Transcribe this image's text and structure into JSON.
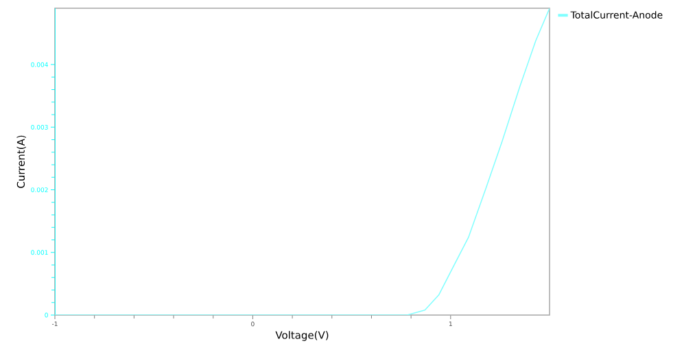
{
  "chart_data": {
    "type": "line",
    "xlabel": "Voltage(V)",
    "ylabel": "Current(A)",
    "xlim": [
      -1,
      1.5
    ],
    "xticks": [
      -1,
      0,
      1
    ],
    "ylim": [
      0,
      0.0049
    ],
    "yticks": [
      0,
      0.001,
      0.002,
      0.003,
      0.004
    ],
    "grid": false,
    "legend": "top right",
    "marker": "none",
    "line_style": "solid",
    "series": [
      {
        "name": "TotalCurrent-Anode",
        "color": "#80ffff",
        "x": [
          -1,
          0.78,
          0.87,
          0.94,
          1.0,
          1.09,
          1.18,
          1.26,
          1.35,
          1.43,
          1.5
        ],
        "values": [
          0,
          0,
          8e-05,
          0.00032,
          0.00069,
          0.00124,
          0.00204,
          0.00277,
          0.00365,
          0.00438,
          0.0049
        ]
      }
    ]
  }
}
